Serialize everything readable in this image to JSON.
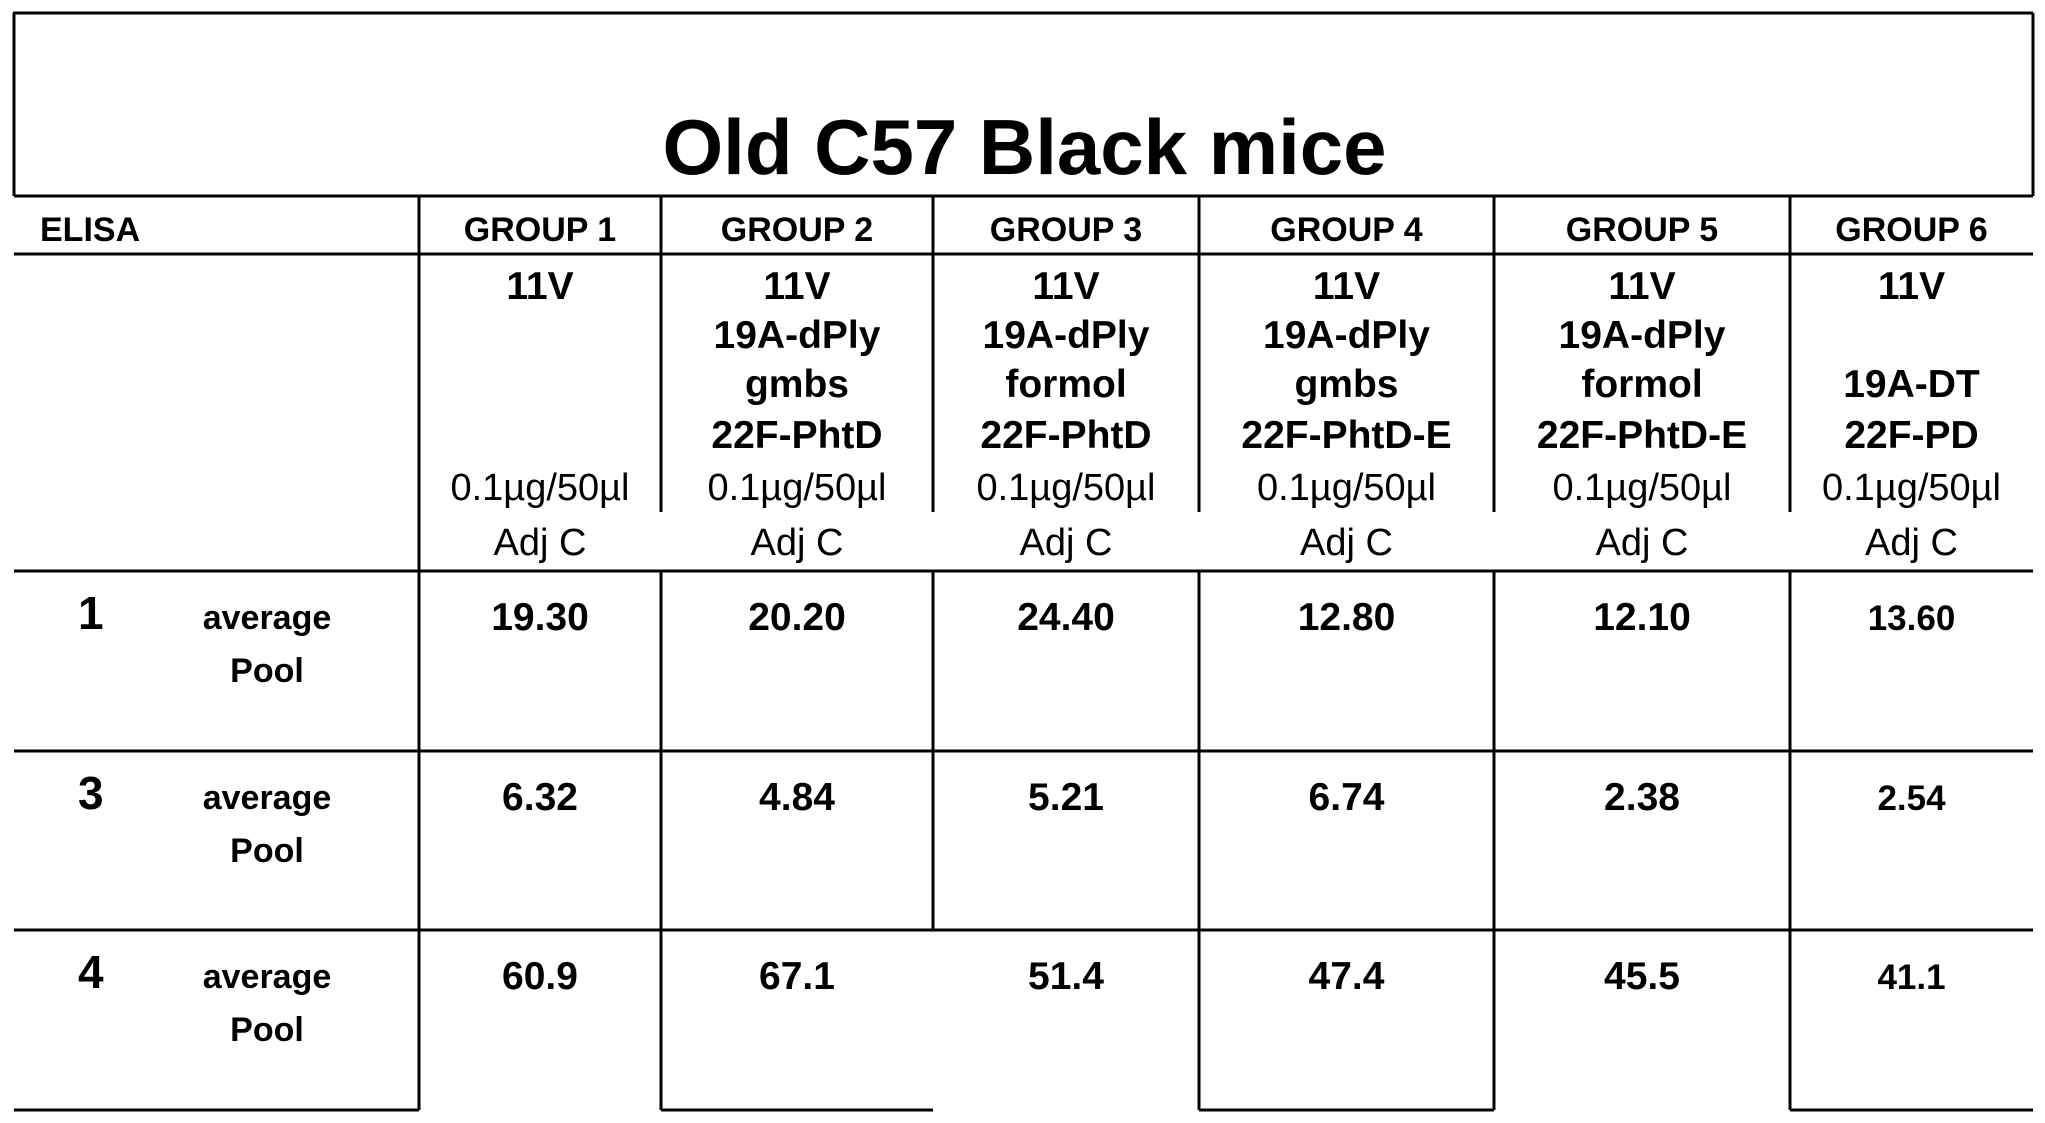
{
  "title": "Old C57 Black mice",
  "header": {
    "elisa_label": "ELISA",
    "groups": [
      {
        "label": "GROUP 1",
        "vaccine": [
          "11V",
          "",
          "",
          ""
        ],
        "dose": "0.1µg/50µl",
        "adjuvant": "Adj C"
      },
      {
        "label": "GROUP 2",
        "vaccine": [
          "11V",
          "19A-dPly",
          "gmbs",
          "22F-PhtD"
        ],
        "dose": "0.1µg/50µl",
        "adjuvant": "Adj C"
      },
      {
        "label": "GROUP 3",
        "vaccine": [
          "11V",
          "19A-dPly",
          "formol",
          "22F-PhtD"
        ],
        "dose": "0.1µg/50µl",
        "adjuvant": "Adj C"
      },
      {
        "label": "GROUP 4",
        "vaccine": [
          "11V",
          "19A-dPly",
          "gmbs",
          "22F-PhtD-E"
        ],
        "dose": "0.1µg/50µl",
        "adjuvant": "Adj C"
      },
      {
        "label": "GROUP 5",
        "vaccine": [
          "11V",
          "19A-dPly",
          "formol",
          "22F-PhtD-E"
        ],
        "dose": "0.1µg/50µl",
        "adjuvant": "Adj C"
      },
      {
        "label": "GROUP 6",
        "vaccine": [
          "11V",
          "",
          "19A-DT",
          "22F-PD"
        ],
        "dose": "0.1µg/50µl",
        "adjuvant": "Adj C"
      }
    ]
  },
  "rows": [
    {
      "serotype": "1",
      "label_line1": "average",
      "label_line2": "Pool",
      "values": [
        "19.30",
        "20.20",
        "24.40",
        "12.80",
        "12.10",
        "13.60"
      ]
    },
    {
      "serotype": "3",
      "label_line1": "average",
      "label_line2": "Pool",
      "values": [
        "6.32",
        "4.84",
        "5.21",
        "6.74",
        "2.38",
        "2.54"
      ]
    },
    {
      "serotype": "4",
      "label_line1": "average",
      "label_line2": "Pool",
      "values": [
        "60.9",
        "67.1",
        "51.4",
        "47.4",
        "45.5",
        "41.1"
      ]
    }
  ]
}
